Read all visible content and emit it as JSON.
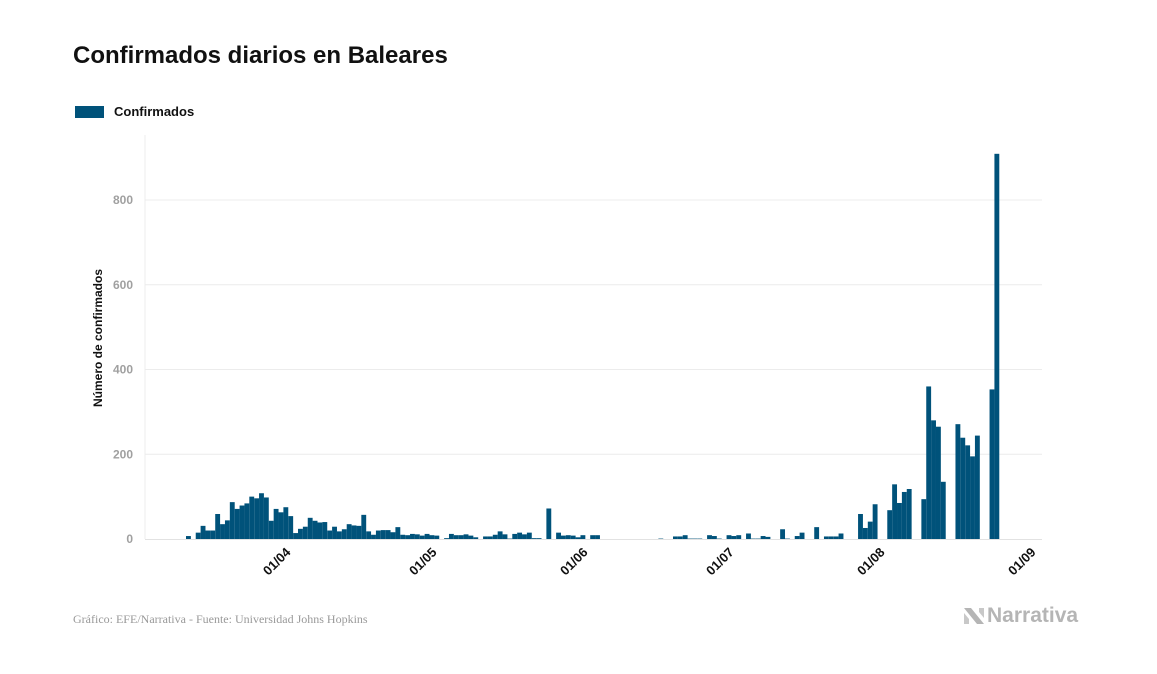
{
  "chart_data": {
    "type": "bar",
    "title": "Confirmados diarios en Baleares",
    "ylabel": "Número de confirmados",
    "xlabel": "",
    "x_start": "2020-03-12",
    "x_step": "1 day",
    "series": [
      {
        "name": "Confirmados",
        "color": "#00527a",
        "values": [
          7,
          0,
          15,
          31,
          20,
          20,
          59,
          35,
          44,
          87,
          71,
          79,
          84,
          100,
          96,
          108,
          98,
          43,
          71,
          63,
          75,
          54,
          14,
          24,
          29,
          50,
          43,
          39,
          40,
          20,
          29,
          18,
          23,
          35,
          32,
          31,
          57,
          18,
          10,
          20,
          21,
          21,
          16,
          28,
          10,
          9,
          12,
          11,
          8,
          12,
          9,
          8,
          0,
          2,
          12,
          9,
          9,
          11,
          8,
          4,
          0,
          6,
          6,
          10,
          18,
          11,
          1,
          12,
          15,
          11,
          15,
          2,
          2,
          0,
          72,
          0,
          15,
          8,
          9,
          8,
          4,
          9,
          0,
          9,
          9,
          0,
          0,
          0,
          0,
          0,
          0,
          0,
          0,
          0,
          0,
          0,
          0,
          1,
          0,
          0,
          6,
          6,
          9,
          1,
          1,
          1,
          0,
          9,
          7,
          1,
          0,
          9,
          7,
          9,
          0,
          13,
          1,
          1,
          7,
          5,
          0,
          0,
          23,
          1,
          0,
          7,
          15,
          0,
          0,
          28,
          0,
          6,
          6,
          6,
          13,
          0,
          0,
          0,
          59,
          26,
          41,
          82,
          0,
          0,
          68,
          129,
          85,
          111,
          118,
          0,
          0,
          94,
          360,
          280,
          265,
          135,
          0,
          0,
          271,
          239,
          221,
          195,
          244,
          0,
          0,
          353,
          909
        ]
      }
    ],
    "x_ticks": [
      {
        "label": "01/04",
        "date": "2020-04-01"
      },
      {
        "label": "01/05",
        "date": "2020-05-01"
      },
      {
        "label": "01/06",
        "date": "2020-06-01"
      },
      {
        "label": "01/07",
        "date": "2020-07-01"
      },
      {
        "label": "01/08",
        "date": "2020-08-01"
      },
      {
        "label": "01/09",
        "date": "2020-09-01"
      }
    ],
    "y_ticks": [
      0,
      200,
      400,
      600,
      800
    ],
    "ylim": [
      0,
      950
    ],
    "grid": "horizontal",
    "legend_placement": "top-left"
  },
  "footer": "Gráfico: EFE/Narrativa - Fuente: Universidad Johns Hopkins",
  "logo": "Narrativa"
}
